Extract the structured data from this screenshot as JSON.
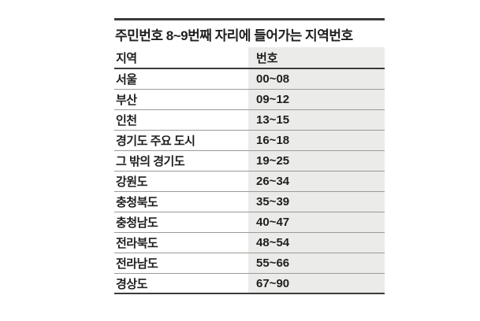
{
  "chart_data": {
    "type": "table",
    "title": "주민번호 8~9번째 자리에 들어가는 지역번호",
    "columns": [
      "지역",
      "번호"
    ],
    "rows": [
      {
        "region": "서울",
        "code": "00~08"
      },
      {
        "region": "부산",
        "code": "09~12"
      },
      {
        "region": "인천",
        "code": "13~15"
      },
      {
        "region": "경기도 주요 도시",
        "code": "16~18"
      },
      {
        "region": "그 밖의 경기도",
        "code": "19~25"
      },
      {
        "region": "강원도",
        "code": "26~34"
      },
      {
        "region": "충청북도",
        "code": "35~39"
      },
      {
        "region": "충청남도",
        "code": "40~47"
      },
      {
        "region": "전라북도",
        "code": "48~54"
      },
      {
        "region": "전라남도",
        "code": "55~66"
      },
      {
        "region": "경상도",
        "code": "67~90"
      }
    ]
  },
  "colors": {
    "page_bg": "#ffffff",
    "code_column_bg": "#ebebe9",
    "rule_dark": "#3b3b3b",
    "row_separator": "#9a9a9a",
    "text": "#1f1f1f"
  }
}
